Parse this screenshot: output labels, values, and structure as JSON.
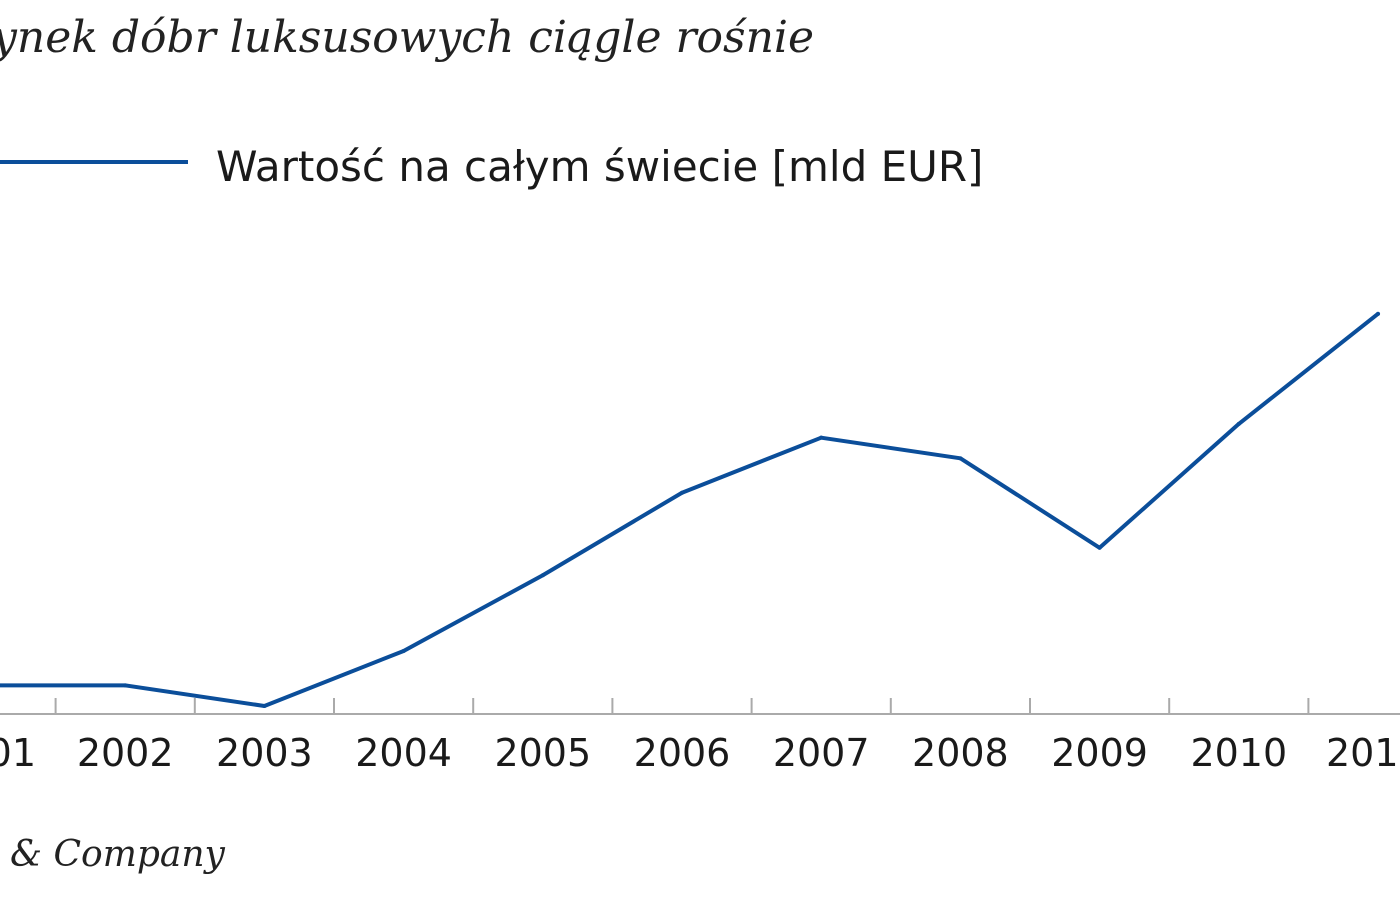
{
  "title": "ynek dóbr luksusowych ciągle rośnie",
  "legend_label": "Wartość na całym świecie [mld EUR]",
  "source": "& Company",
  "colors": {
    "series": "#0b4e9a",
    "axis": "#aaaaaa",
    "text": "#1a1a1a"
  },
  "chart_data": {
    "type": "line",
    "x": [
      "01",
      "2002",
      "2003",
      "2004",
      "2005",
      "2006",
      "2007",
      "2008",
      "2009",
      "2010",
      "201"
    ],
    "series": [
      {
        "name": "Wartość na całym świecie [mld EUR]",
        "values": [
          158,
          158,
          155,
          163,
          174,
          186,
          194,
          191,
          178,
          196,
          212
        ]
      }
    ],
    "ylim": [
      130,
      230
    ],
    "grid": false,
    "legend_position": "top-left"
  }
}
